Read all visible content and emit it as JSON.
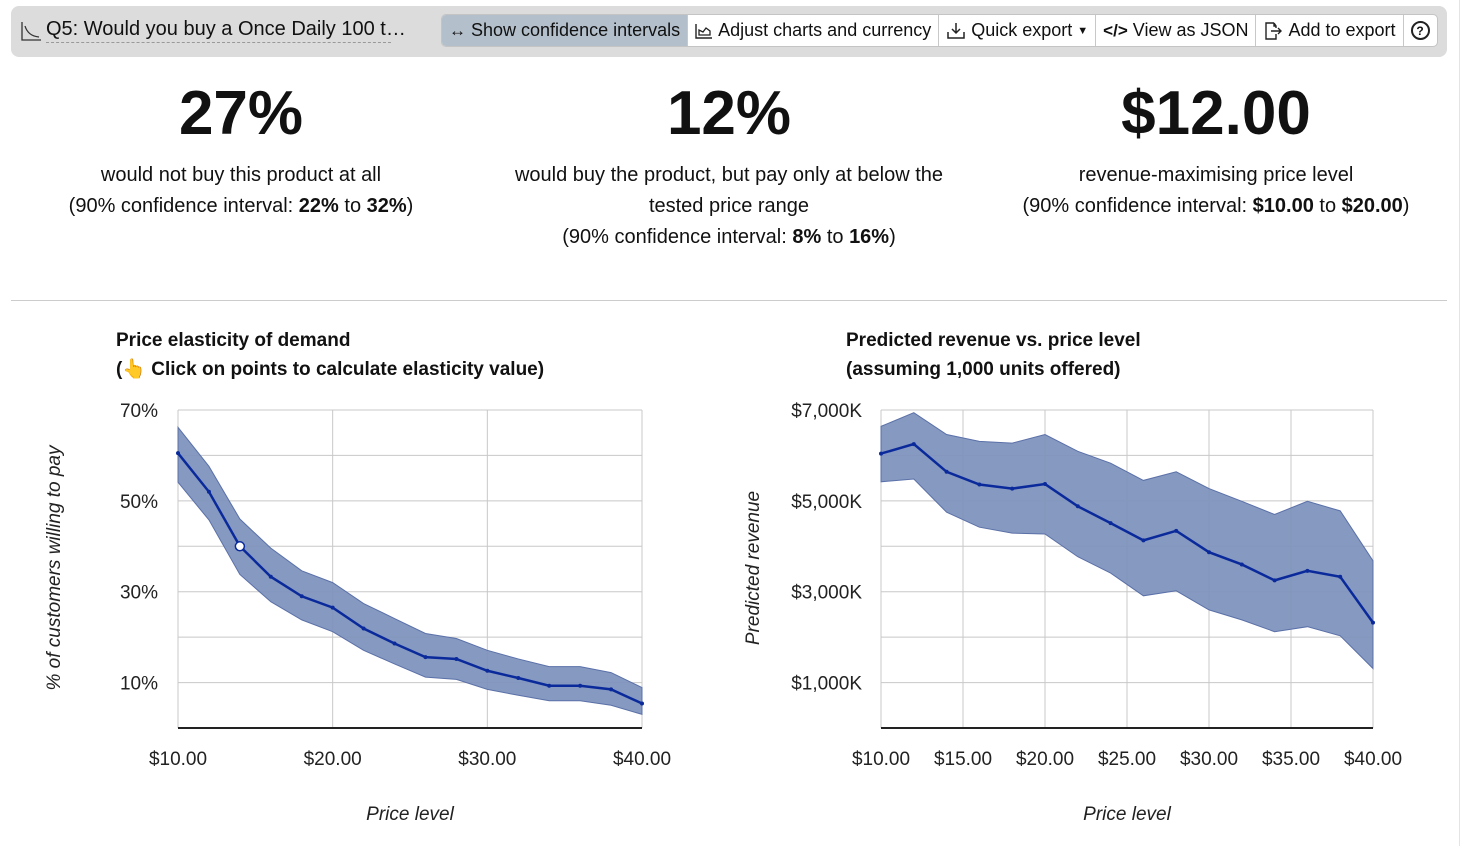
{
  "toolbar": {
    "question_title": "Q5: Would you buy a Once Daily 100 t…",
    "buttons": {
      "confidence": "Show confidence intervals",
      "adjust": "Adjust charts and currency",
      "quick_export": "Quick export",
      "json": "View as JSON",
      "add_export": "Add to export",
      "help": "?"
    }
  },
  "kpis": [
    {
      "value": "27%",
      "line1": "would not buy this product at all",
      "ci_prefix": "(90% confidence interval: ",
      "ci_low": "22%",
      "ci_mid": " to ",
      "ci_high": "32%",
      "ci_suffix": ")"
    },
    {
      "value": "12%",
      "line1": "would buy the product, but pay only at below the",
      "line2": "tested price range",
      "ci_prefix": "(90% confidence interval: ",
      "ci_low": "8%",
      "ci_mid": " to ",
      "ci_high": "16%",
      "ci_suffix": ")"
    },
    {
      "value": "$12.00",
      "line1": "revenue-maximising price level",
      "ci_prefix": "(90% confidence interval: ",
      "ci_low": "$10.00",
      "ci_mid": " to ",
      "ci_high": "$20.00",
      "ci_suffix": ")"
    }
  ],
  "colors": {
    "line": "#0a2a9c",
    "band": "#7f93bd",
    "grid": "#c8c8c8"
  },
  "chart_data": [
    {
      "type": "line",
      "title": "Price elasticity of demand",
      "subtitle_prefix": "(",
      "subtitle": " Click on points to calculate elasticity value)",
      "xlabel": "Price level",
      "ylabel": "% of customers willing to pay",
      "xlim": [
        10,
        40
      ],
      "ylim": [
        0,
        70
      ],
      "xticks": [
        10,
        20,
        30,
        40
      ],
      "xtick_labels": [
        "$10.00",
        "$20.00",
        "$30.00",
        "$40.00"
      ],
      "yticks": [
        10,
        30,
        50,
        70
      ],
      "ytick_labels": [
        "10%",
        "30%",
        "50%",
        "70%"
      ],
      "ygrid_step": 10,
      "xgrid": [
        10,
        20,
        30,
        40
      ],
      "x": [
        10,
        12,
        14,
        16,
        18,
        20,
        22,
        24,
        26,
        28,
        30,
        32,
        34,
        36,
        38,
        40
      ],
      "series": [
        {
          "name": "estimate",
          "values": [
            60.5,
            52,
            40,
            33.3,
            29,
            26.5,
            21.9,
            18.6,
            15.6,
            15.2,
            12.6,
            11,
            9.3,
            9.3,
            8.5,
            5.4
          ]
        }
      ],
      "upper": [
        66.2,
        57.6,
        46,
        39.6,
        34.6,
        32,
        27.4,
        24.1,
        20.8,
        19.7,
        17.1,
        15.2,
        13.5,
        13.5,
        12.2,
        8.9
      ],
      "lower": [
        54.1,
        45.8,
        33.8,
        27.8,
        23.8,
        21.2,
        17.1,
        14.1,
        11.2,
        10.7,
        8.5,
        7.2,
        6,
        6,
        5,
        3
      ],
      "highlight_index": 2
    },
    {
      "type": "line",
      "title": "Predicted revenue vs. price level",
      "subtitle": "(assuming 1,000 units offered)",
      "xlabel": "Price level",
      "ylabel": "Predicted revenue",
      "xlim": [
        10,
        40
      ],
      "ylim": [
        0,
        7000
      ],
      "xticks": [
        10,
        15,
        20,
        25,
        30,
        35,
        40
      ],
      "xtick_labels": [
        "$10.00",
        "$15.00",
        "$20.00",
        "$25.00",
        "$30.00",
        "$35.00",
        "$40.00"
      ],
      "yticks": [
        1000,
        3000,
        5000,
        7000
      ],
      "ytick_labels": [
        "$1,000K",
        "$3,000K",
        "$5,000K",
        "$7,000K"
      ],
      "ygrid_step": 1000,
      "xgrid": [
        10,
        15,
        20,
        25,
        30,
        35,
        40
      ],
      "x": [
        10,
        12,
        14,
        16,
        18,
        20,
        22,
        24,
        26,
        28,
        30,
        32,
        34,
        36,
        38,
        40
      ],
      "series": [
        {
          "name": "estimate",
          "values": [
            6040,
            6250,
            5640,
            5360,
            5270,
            5370,
            4880,
            4510,
            4130,
            4340,
            3870,
            3600,
            3250,
            3460,
            3330,
            2320
          ]
        }
      ],
      "upper": [
        6640,
        6940,
        6460,
        6310,
        6270,
        6460,
        6090,
        5830,
        5450,
        5640,
        5270,
        4990,
        4700,
        4990,
        4780,
        3680
      ],
      "lower": [
        5420,
        5480,
        4750,
        4420,
        4290,
        4270,
        3770,
        3410,
        2910,
        3020,
        2600,
        2380,
        2120,
        2230,
        2030,
        1310
      ],
      "highlight_index": -1
    }
  ]
}
